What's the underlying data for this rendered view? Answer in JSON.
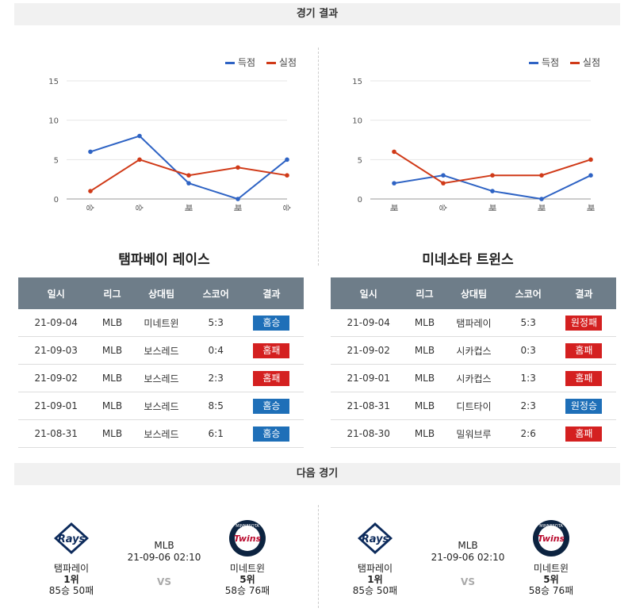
{
  "sections": {
    "results_title": "경기 결과",
    "next_title": "다음 경기"
  },
  "legend": {
    "score": "득점",
    "conceded": "실점",
    "score_color": "#2e63c4",
    "conceded_color": "#d03a18"
  },
  "chart_data": [
    {
      "type": "line",
      "categories": [
        "승",
        "승",
        "패",
        "패",
        "승"
      ],
      "series": [
        {
          "name": "득점",
          "values": [
            6,
            8,
            2,
            0,
            5
          ]
        },
        {
          "name": "실점",
          "values": [
            1,
            5,
            3,
            4,
            3
          ]
        }
      ],
      "y_ticks": [
        "0",
        "5",
        "10",
        "15"
      ],
      "ylim": [
        0,
        15
      ],
      "legend_position": "top-right"
    },
    {
      "type": "line",
      "categories": [
        "패",
        "승",
        "패",
        "패",
        "패"
      ],
      "series": [
        {
          "name": "득점",
          "values": [
            2,
            3,
            1,
            0,
            3
          ]
        },
        {
          "name": "실점",
          "values": [
            6,
            2,
            3,
            3,
            5
          ]
        }
      ],
      "y_ticks": [
        "0",
        "5",
        "10",
        "15"
      ],
      "ylim": [
        0,
        15
      ],
      "legend_position": "top-right"
    }
  ],
  "headers": [
    "일시",
    "리그",
    "상대팀",
    "스코어",
    "결과"
  ],
  "teams": [
    {
      "name": "탬파베이 레이스",
      "rows": [
        {
          "date": "21-09-04",
          "league": "MLB",
          "opponent": "미네트윈",
          "score": "5:3",
          "result": "홈승",
          "win": true
        },
        {
          "date": "21-09-03",
          "league": "MLB",
          "opponent": "보스레드",
          "score": "0:4",
          "result": "홈패",
          "win": false
        },
        {
          "date": "21-09-02",
          "league": "MLB",
          "opponent": "보스레드",
          "score": "2:3",
          "result": "홈패",
          "win": false
        },
        {
          "date": "21-09-01",
          "league": "MLB",
          "opponent": "보스레드",
          "score": "8:5",
          "result": "홈승",
          "win": true
        },
        {
          "date": "21-08-31",
          "league": "MLB",
          "opponent": "보스레드",
          "score": "6:1",
          "result": "홈승",
          "win": true
        }
      ]
    },
    {
      "name": "미네소타 트윈스",
      "rows": [
        {
          "date": "21-09-04",
          "league": "MLB",
          "opponent": "탬파레이",
          "score": "5:3",
          "result": "원정패",
          "win": false
        },
        {
          "date": "21-09-02",
          "league": "MLB",
          "opponent": "시카컵스",
          "score": "0:3",
          "result": "홈패",
          "win": false
        },
        {
          "date": "21-09-01",
          "league": "MLB",
          "opponent": "시카컵스",
          "score": "1:3",
          "result": "홈패",
          "win": false
        },
        {
          "date": "21-08-31",
          "league": "MLB",
          "opponent": "디트타이",
          "score": "2:3",
          "result": "원정승",
          "win": true
        },
        {
          "date": "21-08-30",
          "league": "MLB",
          "opponent": "밀워브루",
          "score": "2:6",
          "result": "홈패",
          "win": false
        }
      ]
    }
  ],
  "next_game": {
    "league": "MLB",
    "datetime": "21-09-06 02:10",
    "vs": "VS",
    "home": {
      "name": "탬파레이",
      "rank": "1위",
      "record": "85승 50패",
      "logo_text": "Rays"
    },
    "away": {
      "name": "미네트윈",
      "rank": "5위",
      "record": "58승 76패",
      "logo_text": "Twins",
      "logo_ring": "MINNESOTA"
    }
  }
}
